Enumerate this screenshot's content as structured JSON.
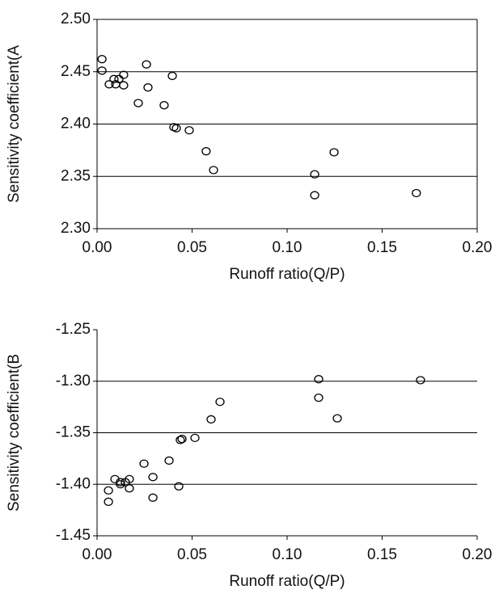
{
  "chart_data": [
    {
      "type": "scatter",
      "xlabel": "Runoff ratio(Q/P)",
      "ylabel": "Sensitivity coefficient(A",
      "x": [
        0.0026,
        0.0026,
        0.0064,
        0.0089,
        0.0098,
        0.0115,
        0.014,
        0.014,
        0.0217,
        0.026,
        0.0268,
        0.0353,
        0.0396,
        0.0404,
        0.0417,
        0.0485,
        0.0574,
        0.0613,
        0.1145,
        0.1247,
        0.1145,
        0.168
      ],
      "series": [
        {
          "color": "#000000",
          "values": [
            2.462,
            2.451,
            2.438,
            2.443,
            2.438,
            2.443,
            2.447,
            2.437,
            2.42,
            2.457,
            2.435,
            2.418,
            2.446,
            2.397,
            2.396,
            2.394,
            2.374,
            2.356,
            2.352,
            2.373,
            2.332,
            2.334
          ]
        }
      ],
      "xlim": [
        0,
        0.2
      ],
      "xticks": [
        {
          "value": 0,
          "label": "0.00"
        },
        {
          "value": 0.05,
          "label": "0.05"
        },
        {
          "value": 0.1,
          "label": "0.10"
        },
        {
          "value": 0.15,
          "label": "0.15"
        },
        {
          "value": 0.2,
          "label": "0.20"
        }
      ],
      "ylim": [
        2.3,
        2.5
      ],
      "yticks": [
        {
          "value": 2.3,
          "label": "2.30"
        },
        {
          "value": 2.35,
          "label": "2.35"
        },
        {
          "value": 2.4,
          "label": "2.40"
        },
        {
          "value": 2.45,
          "label": "2.45"
        },
        {
          "value": 2.5,
          "label": "2.50"
        }
      ],
      "grid": true,
      "frame": "box"
    },
    {
      "type": "scatter",
      "xlabel": "Runoff ratio(Q/P)",
      "ylabel": "Sensitivity coefficient(B",
      "x": [
        0.006,
        0.006,
        0.0094,
        0.0123,
        0.0123,
        0.0149,
        0.017,
        0.017,
        0.0247,
        0.0294,
        0.0294,
        0.0379,
        0.043,
        0.0438,
        0.0447,
        0.0515,
        0.06,
        0.0647,
        0.1166,
        0.1166,
        0.1264,
        0.1702
      ],
      "series": [
        {
          "color": "#000000",
          "values": [
            -1.406,
            -1.417,
            -1.395,
            -1.398,
            -1.4,
            -1.398,
            -1.395,
            -1.404,
            -1.38,
            -1.393,
            -1.413,
            -1.377,
            -1.402,
            -1.357,
            -1.356,
            -1.355,
            -1.337,
            -1.32,
            -1.298,
            -1.316,
            -1.336,
            -1.299
          ]
        }
      ],
      "xlim": [
        0,
        0.2
      ],
      "xticks": [
        {
          "value": 0,
          "label": "0.00"
        },
        {
          "value": 0.05,
          "label": "0.05"
        },
        {
          "value": 0.1,
          "label": "0.10"
        },
        {
          "value": 0.15,
          "label": "0.15"
        },
        {
          "value": 0.2,
          "label": "0.20"
        }
      ],
      "ylim": [
        -1.45,
        -1.25
      ],
      "yticks": [
        {
          "value": -1.45,
          "label": "-1.45"
        },
        {
          "value": -1.4,
          "label": "-1.40"
        },
        {
          "value": -1.35,
          "label": "-1.35"
        },
        {
          "value": -1.3,
          "label": "-1.30"
        },
        {
          "value": -1.25,
          "label": "-1.25"
        }
      ],
      "grid": true,
      "frame": "axes"
    }
  ]
}
